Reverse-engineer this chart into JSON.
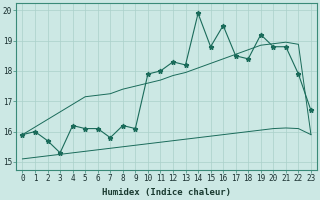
{
  "x_values": [
    0,
    1,
    2,
    3,
    4,
    5,
    6,
    7,
    8,
    9,
    10,
    11,
    12,
    13,
    14,
    15,
    16,
    17,
    18,
    19,
    20,
    21,
    22,
    23
  ],
  "y_main": [
    15.9,
    16.0,
    15.7,
    15.3,
    16.2,
    16.1,
    16.1,
    15.8,
    16.2,
    16.1,
    17.9,
    18.0,
    18.3,
    18.2,
    19.9,
    18.8,
    19.5,
    18.5,
    18.4,
    19.2,
    18.8,
    18.8,
    17.9,
    16.7
  ],
  "y_upper": [
    15.9,
    16.15,
    16.4,
    16.65,
    16.9,
    17.15,
    17.2,
    17.25,
    17.4,
    17.5,
    17.6,
    17.7,
    17.85,
    17.95,
    18.1,
    18.25,
    18.4,
    18.55,
    18.7,
    18.85,
    18.9,
    18.95,
    18.88,
    15.9
  ],
  "y_lower": [
    15.1,
    15.15,
    15.2,
    15.25,
    15.3,
    15.35,
    15.4,
    15.45,
    15.5,
    15.55,
    15.6,
    15.65,
    15.7,
    15.75,
    15.8,
    15.85,
    15.9,
    15.95,
    16.0,
    16.05,
    16.1,
    16.12,
    16.1,
    15.9
  ],
  "color_main": "#1a6b5a",
  "color_band": "#1a6b5a",
  "bg_color": "#cce8e4",
  "grid_color": "#aad0ca",
  "xlabel": "Humidex (Indice chaleur)",
  "ylim": [
    14.75,
    20.25
  ],
  "xlim": [
    -0.5,
    23.5
  ],
  "yticks": [
    15,
    16,
    17,
    18,
    19,
    20
  ],
  "xticks": [
    0,
    1,
    2,
    3,
    4,
    5,
    6,
    7,
    8,
    9,
    10,
    11,
    12,
    13,
    14,
    15,
    16,
    17,
    18,
    19,
    20,
    21,
    22,
    23
  ],
  "tick_fontsize": 5.5,
  "xlabel_fontsize": 6.5,
  "lw_main": 0.8,
  "lw_band": 0.7,
  "marker_size": 3.5
}
